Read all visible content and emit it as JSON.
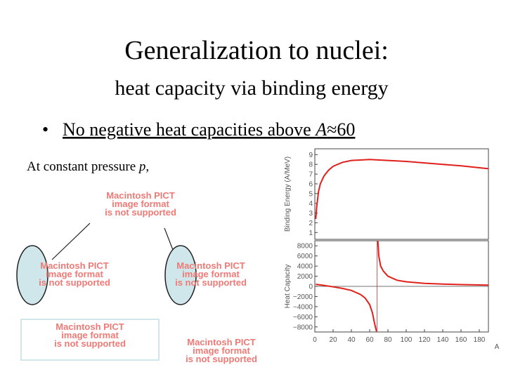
{
  "title": "Generalization to nuclei:",
  "subtitle": "heat capacity via binding energy",
  "bullet": {
    "before": "No negative heat capacities above ",
    "italic": "A",
    "after": "≈60"
  },
  "note": {
    "before": "At constant pressure ",
    "italic": "p",
    "after": ","
  },
  "placeholders": [
    [
      "Macintosh PICT",
      "image format",
      "is not supported"
    ],
    [
      "Macintosh PICT",
      "image format",
      "is not supported"
    ],
    [
      "Macintosh PICT",
      "image format",
      "is not supported"
    ],
    [
      "Macintosh PICT",
      "image format",
      "is not supported"
    ],
    [
      "Macintosh PICT",
      "image format",
      "is not supported"
    ]
  ],
  "chart_data": [
    {
      "type": "line",
      "y_label": "Binding Energy (A/MeV)",
      "x": [
        1,
        2,
        4,
        6,
        10,
        15,
        20,
        30,
        40,
        60,
        80,
        100,
        120,
        140,
        160,
        180,
        190
      ],
      "series": [
        {
          "color": "#e0201b",
          "values": [
            2.4,
            3.6,
            5.2,
            6.0,
            6.8,
            7.4,
            7.8,
            8.2,
            8.4,
            8.5,
            8.4,
            8.3,
            8.15,
            8.0,
            7.85,
            7.65,
            7.55
          ]
        }
      ],
      "xlim": [
        0,
        190
      ],
      "ylim": [
        0.3,
        9.6
      ],
      "yticks": [
        1,
        2,
        3,
        4,
        5,
        6,
        7,
        8,
        9
      ]
    },
    {
      "type": "line",
      "y_label": "Heat Capacity",
      "x_label": "A",
      "x": [
        1,
        10,
        20,
        30,
        40,
        50,
        55,
        60,
        63,
        65,
        66.5,
        67.5,
        68,
        69,
        70,
        72,
        75,
        80,
        90,
        100,
        120,
        140,
        160,
        180,
        190
      ],
      "series": [
        {
          "color": "#e0201b",
          "values": [
            400,
            200,
            -100,
            -400,
            -800,
            -1600,
            -2300,
            -3600,
            -5200,
            -7000,
            -8200,
            -8900,
            null,
            8900,
            6000,
            4000,
            3000,
            2000,
            1200,
            900,
            600,
            450,
            350,
            280,
            250
          ]
        }
      ],
      "vline": 68,
      "hline": 0,
      "xlim": [
        0,
        190
      ],
      "xticks": [
        0,
        20,
        40,
        60,
        80,
        100,
        120,
        140,
        160,
        180
      ],
      "ylim": [
        -9000,
        9000
      ],
      "yticks": [
        {
          "value": -8000,
          "label": "−8000"
        },
        {
          "value": -6000,
          "label": "−6000"
        },
        {
          "value": -4000,
          "label": "−4000"
        },
        {
          "value": -2000,
          "label": "−2000"
        },
        0,
        2000,
        4000,
        6000,
        8000
      ]
    }
  ]
}
